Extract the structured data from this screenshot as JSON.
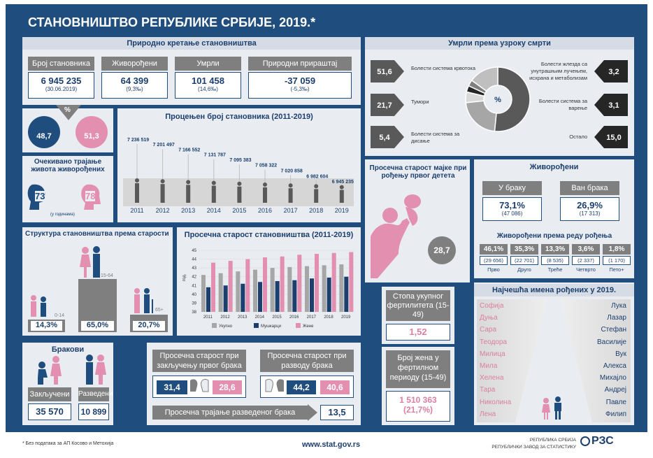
{
  "title": "СТАНОВНИШТВО РЕПУБЛИКЕ СРБИЈЕ, 2019.*",
  "natural_movement": {
    "title": "Природно кретање становништва",
    "items": [
      {
        "label": "Број становника",
        "value": "6 945 235",
        "sub": "(30.06.2019)"
      },
      {
        "label": "Живорођени",
        "value": "64 399",
        "sub": "(9,3‰)"
      },
      {
        "label": "Умрли",
        "value": "101 458",
        "sub": "(14,6‰)"
      },
      {
        "label": "Природни прираштај",
        "value": "-37 059",
        "sub": "(-5,3‰)"
      }
    ]
  },
  "gender": {
    "percent_sign": "%",
    "male": "48,7",
    "female": "51,3"
  },
  "life_expectancy": {
    "title": "Очекивано трајање живота живорођених",
    "male": "73",
    "female": "78",
    "unit": "(у годинама)"
  },
  "estimated": {
    "title": "Процењен број становника (2011-2019)",
    "chart_data": {
      "type": "line",
      "categories": [
        "2011",
        "2012",
        "2013",
        "2014",
        "2015",
        "2016",
        "2017",
        "2018",
        "2019"
      ],
      "labels": [
        "7 236 519",
        "7 201 497",
        "7 166 552",
        "7 131 787",
        "7 095 383",
        "7 058 322",
        "7 020 858",
        "6 982 604",
        "6 945 235"
      ],
      "values": [
        7236519,
        7201497,
        7166552,
        7131787,
        7095383,
        7058322,
        7020858,
        6982604,
        6945235
      ]
    }
  },
  "deaths": {
    "title": "Умрли према узроку смрти",
    "center": "%",
    "left": [
      {
        "value": "51,6",
        "label": "Болести система крвотока"
      },
      {
        "value": "21,7",
        "label": "Тумори"
      },
      {
        "value": "5,4",
        "label": "Болести система за дисање"
      }
    ],
    "right": [
      {
        "value": "3,2",
        "label": "Болести жлезда са унутрашњим лучењем, исхрана и метаболизам"
      },
      {
        "value": "3,1",
        "label": "Болести система за варење"
      },
      {
        "value": "15,0",
        "label": "Остало"
      }
    ],
    "chart_data": {
      "type": "pie",
      "categories": [
        "Болести система крвотока",
        "Тумори",
        "Болести система за дисање",
        "Болести жлезда са унутрашњим лучењем, исхрана и метаболизам",
        "Болести система за варење",
        "Остало"
      ],
      "values": [
        51.6,
        21.7,
        5.4,
        3.2,
        3.1,
        15.0
      ],
      "colors": [
        "#595959",
        "#a6a6a6",
        "#d9d9d9",
        "#262626",
        "#7f7f7f",
        "#bfbfbf"
      ]
    }
  },
  "mother_age": {
    "title": "Просечна старост мајке при рођењу првог детета",
    "value": "28,7"
  },
  "live_births": {
    "title": "Живорођени",
    "in_marriage": {
      "label": "У браку",
      "pct": "73,1%",
      "count": "(47 086)"
    },
    "out_marriage": {
      "label": "Ван брака",
      "pct": "26,9%",
      "count": "(17 313)"
    },
    "order_title": "Живорођени према реду рођења",
    "order": [
      {
        "pct": "46,1%",
        "count": "(29 656)",
        "label": "Прво"
      },
      {
        "pct": "35,3%",
        "count": "(22 701)",
        "label": "Друго"
      },
      {
        "pct": "13,3%",
        "count": "(8 535)",
        "label": "Треће"
      },
      {
        "pct": "3,6%",
        "count": "(2 337)",
        "label": "Четврто"
      },
      {
        "pct": "1,8%",
        "count": "(1 170)",
        "label": "Пето+"
      }
    ]
  },
  "age_structure": {
    "title": "Структура становништва према старости",
    "groups": [
      {
        "range": "0-14",
        "pct": "14,3%"
      },
      {
        "range": "15-64",
        "pct": "65,0%"
      },
      {
        "range": "65+",
        "pct": "20,7%"
      }
    ]
  },
  "avg_age": {
    "title": "Просечна старост становништва (2011-2019)",
    "chart_data": {
      "type": "bar",
      "categories": [
        "2011",
        "2012",
        "2013",
        "2014",
        "2015",
        "2016",
        "2017",
        "2018",
        "2019"
      ],
      "ylabel": "год.",
      "ylim": [
        38,
        45
      ],
      "yticks": [
        "38",
        "39",
        "40",
        "41",
        "42",
        "43",
        "44",
        "45"
      ],
      "series": [
        {
          "name": "Укупно",
          "color": "#a6a6a6",
          "values": [
            42.2,
            42.4,
            42.6,
            42.8,
            43.0,
            43.1,
            43.2,
            43.3,
            43.4
          ]
        },
        {
          "name": "Мушкарци",
          "color": "#1c3f6e",
          "values": [
            40.8,
            41.0,
            41.2,
            41.4,
            41.5,
            41.6,
            41.8,
            41.9,
            42.0
          ]
        },
        {
          "name": "Жене",
          "color": "#e38fb0",
          "values": [
            43.6,
            43.8,
            44.0,
            44.2,
            44.3,
            44.5,
            44.6,
            44.7,
            44.8
          ]
        }
      ]
    }
  },
  "marriages": {
    "title": "Бракови",
    "concluded_label": "Закључени",
    "concluded": "35 570",
    "divorced_label": "Разведени",
    "divorced": "10 899"
  },
  "marriage_ages": {
    "first_label": "Просечна старост при закључењу првог брака",
    "first_m": "31,4",
    "first_f": "28,6",
    "divorce_label": "Просечна старост при разводу брака",
    "div_m": "44,2",
    "div_f": "40,6",
    "duration_label": "Просечна трајање разведеног брака",
    "duration": "13,5"
  },
  "fertility": {
    "label": "Стопа укупног фертилитета (15-49)",
    "value": "1,52"
  },
  "women": {
    "label": "Број жена у фертилном периоду (15-49)",
    "value": "1 510 363",
    "pct": "(21,7%)"
  },
  "names": {
    "title": "Најчешћа имена рођених у 2019.",
    "female": [
      "Софија",
      "Дуња",
      "Сара",
      "Теодора",
      "Милица",
      "Мила",
      "Хелена",
      "Тара",
      "Николина",
      "Лена"
    ],
    "male": [
      "Лука",
      "Лазар",
      "Стефан",
      "Василије",
      "Вук",
      "Алекса",
      "Михајло",
      "Андреј",
      "Павле",
      "Филип"
    ]
  },
  "footer": {
    "note": "* Без података за АП Косово и Метохија",
    "url": "www.stat.gov.rs",
    "org1": "РЕПУБЛИКА СРБИЈА",
    "org2": "РЕПУБЛИЧКИ ЗАВОД ЗА СТАТИСТИКУ",
    "logo": "РЗС"
  },
  "colors": {
    "navy": "#1f4e7e",
    "pink": "#e38fb0",
    "grey": "#7f7f7f",
    "panel": "#e9edf2"
  }
}
